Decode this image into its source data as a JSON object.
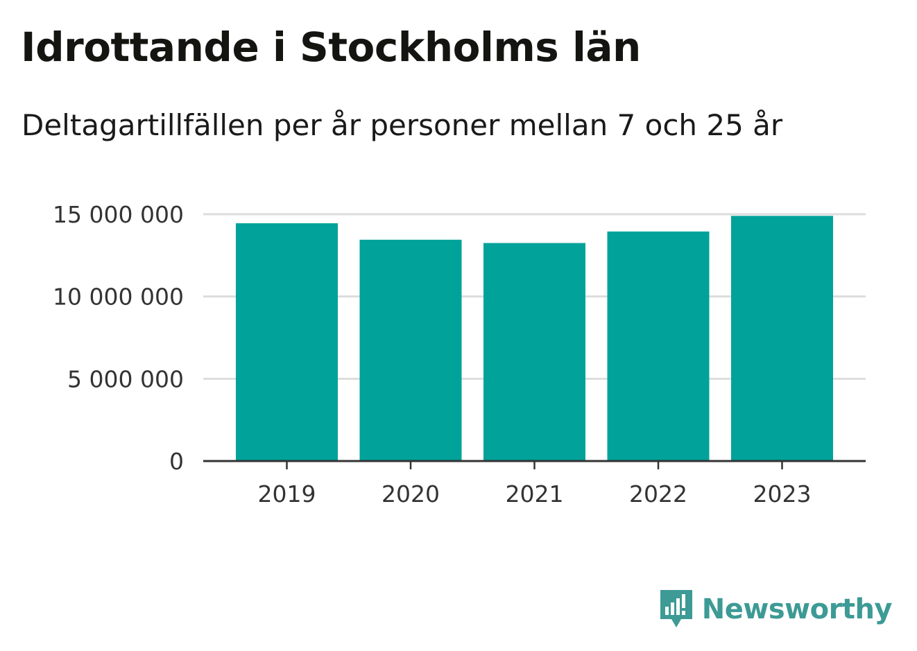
{
  "header": {
    "title": "Idrottande i Stockholms län",
    "subtitle": "Deltagartillfällen per år personer mellan 7 och 25 år"
  },
  "brand": {
    "name": "Newsworthy",
    "color": "#3d9a95"
  },
  "colors": {
    "bar": "#00a29a",
    "grid": "#dddddd",
    "axis": "#333333"
  },
  "chart_data": {
    "type": "bar",
    "categories": [
      "2019",
      "2020",
      "2021",
      "2022",
      "2023"
    ],
    "values": [
      14450000,
      13450000,
      13250000,
      13950000,
      14900000
    ],
    "title": "Idrottande i Stockholms län",
    "subtitle": "Deltagartillfällen per år personer mellan 7 och 25 år",
    "xlabel": "",
    "ylabel": "",
    "ylim": [
      0,
      15000000
    ],
    "yticks": [
      0,
      5000000,
      10000000,
      15000000
    ],
    "ytick_labels": [
      "0",
      "5 000 000",
      "10 000 000",
      "15 000 000"
    ],
    "grid": true,
    "legend": "none"
  }
}
